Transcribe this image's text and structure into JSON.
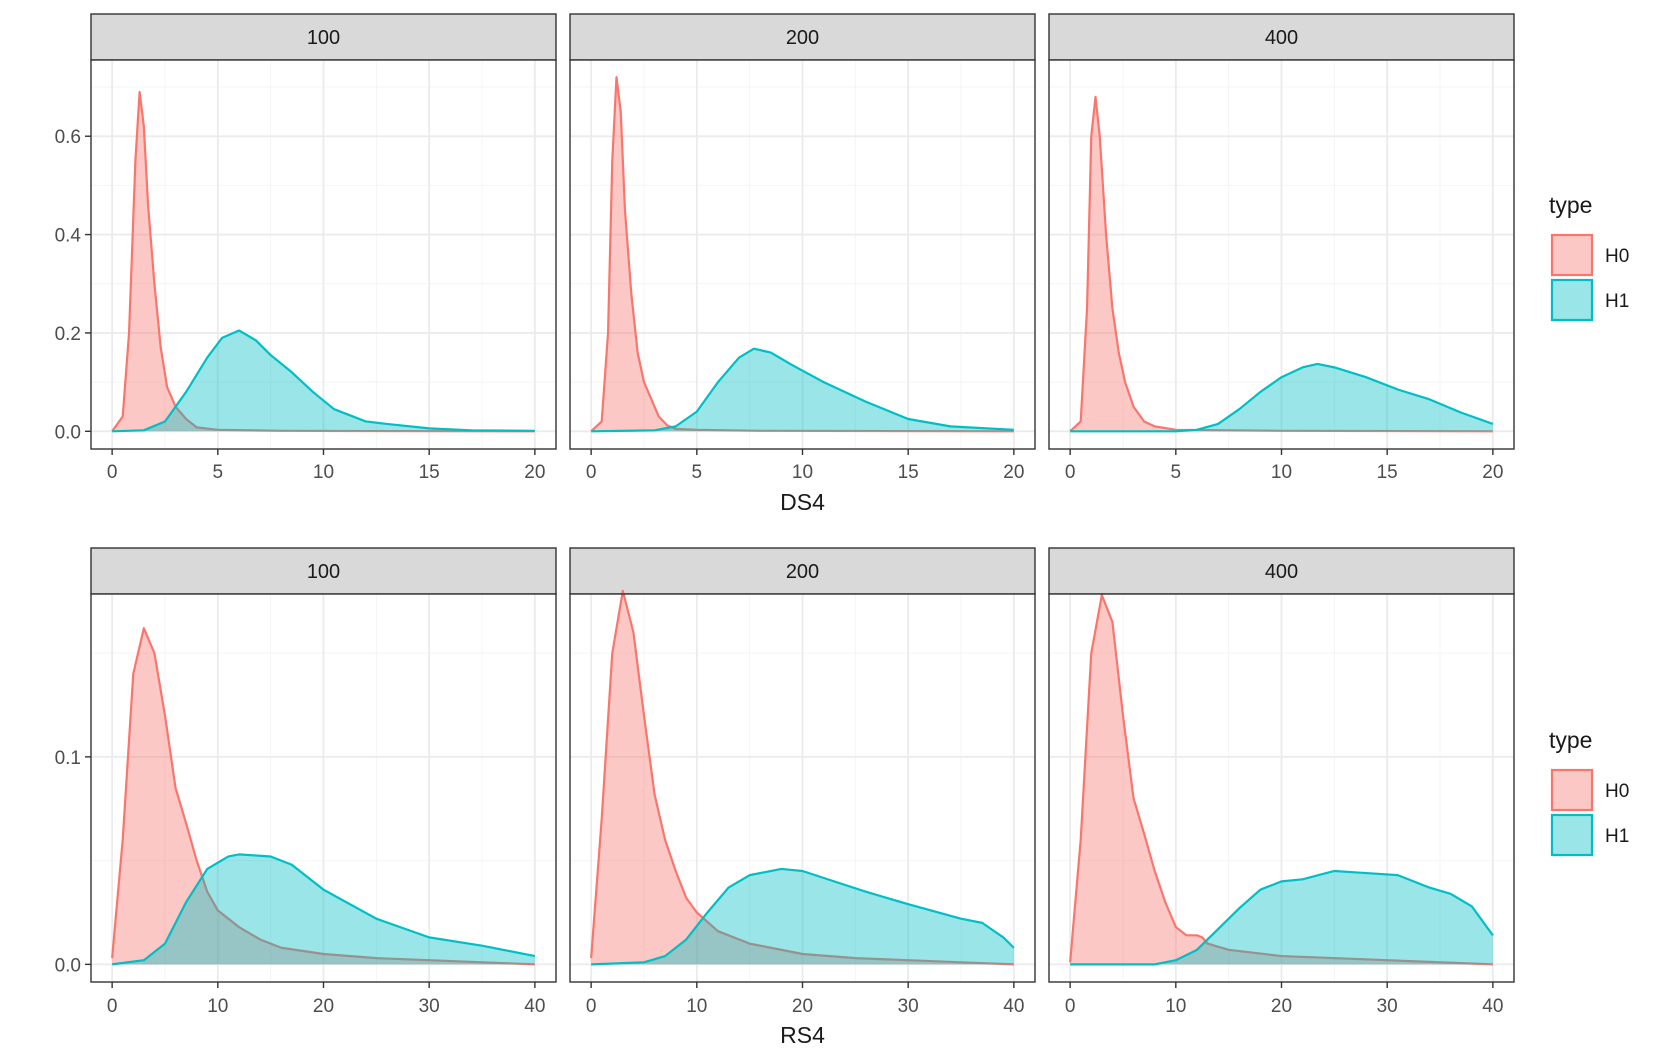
{
  "chart_data": [
    {
      "type": "area",
      "variant": "density",
      "name": "DS4",
      "xlabel": "DS4",
      "ylabel": "",
      "xlim": [
        -1,
        21
      ],
      "ylim": [
        -0.036,
        0.755
      ],
      "x_ticks": [
        0,
        5,
        10,
        15,
        20
      ],
      "y_ticks": [
        0.0,
        0.2,
        0.4,
        0.6
      ],
      "y_tick_labels": [
        "0.0",
        "0.2",
        "0.4",
        "0.6"
      ],
      "minor_y_ticks": [
        0.1,
        0.3,
        0.5,
        0.7
      ],
      "grid": true,
      "legend": {
        "title": "type",
        "entries": [
          "H0",
          "H1"
        ],
        "position": "right"
      },
      "panels": [
        {
          "label": "100",
          "series": [
            {
              "name": "H0",
              "x": [
                0,
                0.5,
                0.8,
                1.1,
                1.3,
                1.5,
                1.7,
                2.0,
                2.3,
                2.6,
                3.0,
                3.5,
                4.0,
                5,
                8,
                12,
                20
              ],
              "y": [
                0,
                0.03,
                0.2,
                0.55,
                0.69,
                0.62,
                0.46,
                0.3,
                0.17,
                0.09,
                0.05,
                0.025,
                0.008,
                0.003,
                0.001,
                0.0005,
                0
              ]
            },
            {
              "name": "H1",
              "x": [
                0,
                1.5,
                2.5,
                3.5,
                4.5,
                5.2,
                6.0,
                6.8,
                7.5,
                8.5,
                9.5,
                10.5,
                12,
                13,
                15,
                17,
                20
              ],
              "y": [
                0,
                0.002,
                0.02,
                0.08,
                0.15,
                0.19,
                0.205,
                0.185,
                0.155,
                0.12,
                0.08,
                0.045,
                0.02,
                0.015,
                0.006,
                0.002,
                0.001
              ]
            }
          ]
        },
        {
          "label": "200",
          "series": [
            {
              "name": "H0",
              "x": [
                0,
                0.5,
                0.8,
                1.0,
                1.2,
                1.4,
                1.6,
                1.9,
                2.2,
                2.5,
                2.8,
                3.2,
                3.6,
                4.0,
                5,
                8,
                20
              ],
              "y": [
                0,
                0.02,
                0.2,
                0.55,
                0.72,
                0.65,
                0.45,
                0.28,
                0.16,
                0.1,
                0.07,
                0.03,
                0.012,
                0.005,
                0.003,
                0.001,
                0
              ]
            },
            {
              "name": "H1",
              "x": [
                0,
                3,
                4,
                5,
                6,
                7,
                7.7,
                8.5,
                9.5,
                11,
                13,
                15,
                17,
                20
              ],
              "y": [
                0,
                0.002,
                0.01,
                0.04,
                0.1,
                0.15,
                0.168,
                0.16,
                0.135,
                0.1,
                0.06,
                0.025,
                0.01,
                0.003
              ]
            }
          ]
        },
        {
          "label": "400",
          "series": [
            {
              "name": "H0",
              "x": [
                0,
                0.5,
                0.8,
                1.0,
                1.2,
                1.4,
                1.7,
                2.0,
                2.3,
                2.6,
                3.0,
                3.5,
                4.0,
                5,
                10,
                20
              ],
              "y": [
                0,
                0.02,
                0.25,
                0.6,
                0.68,
                0.6,
                0.4,
                0.25,
                0.16,
                0.1,
                0.05,
                0.02,
                0.01,
                0.003,
                0.001,
                0
              ]
            },
            {
              "name": "H1",
              "x": [
                0,
                5,
                6,
                7,
                8,
                9,
                10,
                11,
                11.7,
                12.5,
                14,
                15.5,
                17,
                18.5,
                20
              ],
              "y": [
                0,
                0,
                0.003,
                0.015,
                0.045,
                0.08,
                0.11,
                0.13,
                0.137,
                0.13,
                0.11,
                0.085,
                0.065,
                0.038,
                0.015
              ]
            }
          ]
        }
      ]
    },
    {
      "type": "area",
      "variant": "density",
      "name": "RS4",
      "xlabel": "RS4",
      "ylabel": "",
      "xlim": [
        -2,
        42
      ],
      "ylim": [
        -0.0085,
        0.1785
      ],
      "x_ticks": [
        0,
        10,
        20,
        30,
        40
      ],
      "y_ticks": [
        0.0,
        0.1
      ],
      "y_tick_labels": [
        "0.0",
        "0.1"
      ],
      "minor_y_ticks": [
        0.05,
        0.15
      ],
      "grid": true,
      "legend": {
        "title": "type",
        "entries": [
          "H0",
          "H1"
        ],
        "position": "right"
      },
      "panels": [
        {
          "label": "100",
          "series": [
            {
              "name": "H0",
              "x": [
                0,
                1,
                2,
                3,
                4,
                5,
                6,
                7,
                8,
                9,
                10,
                12,
                14,
                16,
                20,
                25,
                30,
                35,
                40
              ],
              "y": [
                0.003,
                0.06,
                0.14,
                0.162,
                0.15,
                0.12,
                0.085,
                0.068,
                0.05,
                0.035,
                0.026,
                0.018,
                0.012,
                0.008,
                0.005,
                0.003,
                0.002,
                0.001,
                0
              ]
            },
            {
              "name": "H1",
              "x": [
                0,
                3,
                5,
                7,
                9,
                11,
                12,
                15,
                17,
                20,
                25,
                30,
                35,
                40
              ],
              "y": [
                0,
                0.002,
                0.01,
                0.03,
                0.046,
                0.052,
                0.053,
                0.052,
                0.048,
                0.036,
                0.022,
                0.013,
                0.009,
                0.004
              ]
            }
          ]
        },
        {
          "label": "200",
          "series": [
            {
              "name": "H0",
              "x": [
                0,
                1,
                2,
                3,
                4,
                5,
                6,
                7,
                8,
                9,
                10,
                12,
                15,
                20,
                25,
                30,
                35,
                40
              ],
              "y": [
                0.003,
                0.07,
                0.15,
                0.18,
                0.16,
                0.12,
                0.082,
                0.06,
                0.045,
                0.032,
                0.025,
                0.016,
                0.01,
                0.005,
                0.003,
                0.002,
                0.001,
                0
              ]
            },
            {
              "name": "H1",
              "x": [
                0,
                5,
                7,
                9,
                11,
                13,
                15,
                18,
                20,
                23,
                26,
                30,
                35,
                37,
                39,
                40
              ],
              "y": [
                0,
                0.001,
                0.004,
                0.012,
                0.025,
                0.037,
                0.043,
                0.046,
                0.045,
                0.04,
                0.035,
                0.029,
                0.022,
                0.02,
                0.013,
                0.008
              ]
            }
          ]
        },
        {
          "label": "400",
          "series": [
            {
              "name": "H0",
              "x": [
                0,
                1,
                2,
                3,
                4,
                5,
                6,
                7,
                8,
                9,
                10,
                11,
                12,
                12.5,
                13,
                15,
                20,
                30,
                40
              ],
              "y": [
                0.001,
                0.06,
                0.15,
                0.178,
                0.165,
                0.12,
                0.08,
                0.063,
                0.045,
                0.03,
                0.018,
                0.014,
                0.014,
                0.013,
                0.01,
                0.007,
                0.004,
                0.002,
                0
              ]
            },
            {
              "name": "H1",
              "x": [
                0,
                8,
                10,
                12,
                14,
                16,
                18,
                20,
                22,
                25,
                28,
                31,
                34,
                36,
                38,
                40
              ],
              "y": [
                0,
                0,
                0.002,
                0.007,
                0.017,
                0.027,
                0.036,
                0.04,
                0.041,
                0.045,
                0.044,
                0.043,
                0.037,
                0.034,
                0.028,
                0.014
              ]
            }
          ]
        }
      ]
    }
  ],
  "colors": {
    "H0": "#F8766D",
    "H1": "#00BFC4",
    "overlap_line": "#8C8C8C",
    "strip_fill": "#D9D9D9",
    "grid_major": "#EBEBEB",
    "grid_minor": "#F4F4F4",
    "border": "#333333"
  }
}
